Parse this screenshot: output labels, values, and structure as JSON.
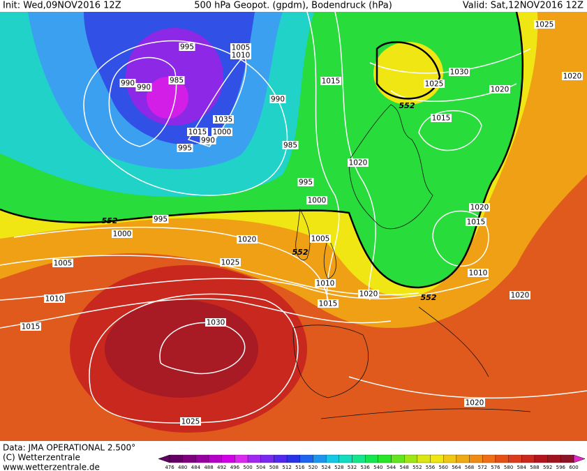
{
  "header": {
    "init": "Init: Wed,09NOV2016 12Z",
    "title": "500 hPa Geopot. (gpdm), Bodendruck (hPa)",
    "valid": "Valid: Sat,12NOV2016 12Z"
  },
  "isobar_labels": [
    "1025",
    "995",
    "1005",
    "1010",
    "990",
    "990",
    "985",
    "1030",
    "1020",
    "1025",
    "1020",
    "1015",
    "990",
    "552",
    "1015",
    "1035",
    "1015",
    "1000",
    "990",
    "995",
    "985",
    "1020",
    "995",
    "1000",
    "1020",
    "552",
    "995",
    "1015",
    "1000",
    "1005",
    "1020",
    "552",
    "1005",
    "1025",
    "1010",
    "1010",
    "1020",
    "552",
    "1015",
    "1020",
    "1010",
    "1015",
    "1030",
    "1020",
    "1025"
  ],
  "footer": {
    "data": "Data: JMA OPERATIONAL  2.500°",
    "copyright": "(C) Wetterzentrale",
    "url": "www.wetterzentrale.de"
  },
  "colorbar": {
    "ticks": [
      476,
      480,
      484,
      488,
      492,
      496,
      500,
      504,
      508,
      512,
      516,
      520,
      524,
      528,
      532,
      536,
      540,
      544,
      548,
      552,
      556,
      560,
      564,
      568,
      572,
      576,
      580,
      584,
      588,
      592,
      596,
      600
    ],
    "colors": [
      "#640064",
      "#7d007d",
      "#9600a0",
      "#b400c8",
      "#d200e6",
      "#dc28f0",
      "#a028f0",
      "#7828f0",
      "#5028f0",
      "#2832e6",
      "#1e64f0",
      "#1e96f0",
      "#14c8e6",
      "#14dcbe",
      "#14e68c",
      "#14e650",
      "#28e628",
      "#64e61e",
      "#a0e614",
      "#dce614",
      "#f0e614",
      "#f0c814",
      "#f0aa14",
      "#f08c14",
      "#f06e14",
      "#e65014",
      "#dc3c1e",
      "#c8281e",
      "#b4141e",
      "#a0141e",
      "#8c1428"
    ]
  }
}
